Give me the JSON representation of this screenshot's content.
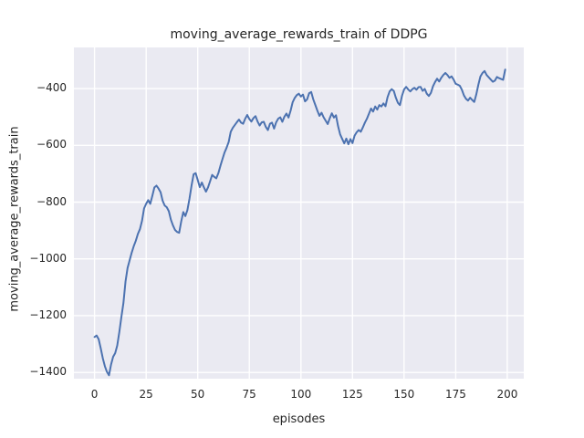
{
  "figure": {
    "title": "moving_average_rewards_train of DDPG",
    "xlabel": "episodes",
    "ylabel": "moving_average_rewards_train"
  },
  "colors": {
    "figure_bg": "#ffffff",
    "plot_bg": "#eaeaf2",
    "grid": "#ffffff",
    "line": "#4c72b0",
    "text": "#262626"
  },
  "chart_data": {
    "type": "line",
    "title": "moving_average_rewards_train of DDPG",
    "xlabel": "episodes",
    "ylabel": "moving_average_rewards_train",
    "style": "seaborn-darkgrid",
    "grid": true,
    "legend_position": "none",
    "x_ticks": [
      0,
      25,
      50,
      75,
      100,
      125,
      150,
      175,
      200
    ],
    "y_ticks": [
      -400,
      -600,
      -800,
      -1000,
      -1200,
      -1400
    ],
    "xlim": [
      -10,
      208
    ],
    "ylim": [
      -1422,
      -255
    ],
    "series": [
      {
        "name": "moving_average_rewards_train",
        "color": "#4c72b0",
        "points": [
          [
            0,
            -1275
          ],
          [
            1,
            -1270
          ],
          [
            2,
            -1283
          ],
          [
            3,
            -1315
          ],
          [
            4,
            -1350
          ],
          [
            5,
            -1378
          ],
          [
            6,
            -1398
          ],
          [
            7,
            -1410
          ],
          [
            8,
            -1372
          ],
          [
            9,
            -1345
          ],
          [
            10,
            -1332
          ],
          [
            11,
            -1305
          ],
          [
            12,
            -1258
          ],
          [
            13,
            -1205
          ],
          [
            14,
            -1155
          ],
          [
            15,
            -1080
          ],
          [
            16,
            -1032
          ],
          [
            17,
            -1005
          ],
          [
            18,
            -978
          ],
          [
            19,
            -955
          ],
          [
            20,
            -936
          ],
          [
            21,
            -912
          ],
          [
            22,
            -895
          ],
          [
            23,
            -866
          ],
          [
            24,
            -822
          ],
          [
            25,
            -806
          ],
          [
            26,
            -793
          ],
          [
            27,
            -806
          ],
          [
            28,
            -778
          ],
          [
            29,
            -748
          ],
          [
            30,
            -742
          ],
          [
            31,
            -752
          ],
          [
            32,
            -765
          ],
          [
            33,
            -795
          ],
          [
            34,
            -812
          ],
          [
            35,
            -818
          ],
          [
            36,
            -832
          ],
          [
            37,
            -862
          ],
          [
            38,
            -882
          ],
          [
            39,
            -898
          ],
          [
            40,
            -905
          ],
          [
            41,
            -908
          ],
          [
            42,
            -868
          ],
          [
            43,
            -835
          ],
          [
            44,
            -849
          ],
          [
            45,
            -828
          ],
          [
            46,
            -788
          ],
          [
            47,
            -742
          ],
          [
            48,
            -702
          ],
          [
            49,
            -698
          ],
          [
            50,
            -722
          ],
          [
            51,
            -747
          ],
          [
            52,
            -731
          ],
          [
            53,
            -748
          ],
          [
            54,
            -763
          ],
          [
            55,
            -748
          ],
          [
            56,
            -726
          ],
          [
            57,
            -704
          ],
          [
            58,
            -711
          ],
          [
            59,
            -716
          ],
          [
            60,
            -698
          ],
          [
            61,
            -672
          ],
          [
            62,
            -648
          ],
          [
            63,
            -625
          ],
          [
            64,
            -608
          ],
          [
            65,
            -588
          ],
          [
            66,
            -552
          ],
          [
            67,
            -538
          ],
          [
            68,
            -528
          ],
          [
            69,
            -518
          ],
          [
            70,
            -509
          ],
          [
            71,
            -520
          ],
          [
            72,
            -524
          ],
          [
            73,
            -506
          ],
          [
            74,
            -493
          ],
          [
            75,
            -507
          ],
          [
            76,
            -516
          ],
          [
            77,
            -504
          ],
          [
            78,
            -497
          ],
          [
            79,
            -516
          ],
          [
            80,
            -530
          ],
          [
            81,
            -519
          ],
          [
            82,
            -517
          ],
          [
            83,
            -535
          ],
          [
            84,
            -546
          ],
          [
            85,
            -524
          ],
          [
            86,
            -520
          ],
          [
            87,
            -541
          ],
          [
            88,
            -519
          ],
          [
            89,
            -506
          ],
          [
            90,
            -501
          ],
          [
            91,
            -517
          ],
          [
            92,
            -499
          ],
          [
            93,
            -488
          ],
          [
            94,
            -502
          ],
          [
            95,
            -478
          ],
          [
            96,
            -448
          ],
          [
            97,
            -433
          ],
          [
            98,
            -423
          ],
          [
            99,
            -418
          ],
          [
            100,
            -428
          ],
          [
            101,
            -421
          ],
          [
            102,
            -445
          ],
          [
            103,
            -438
          ],
          [
            104,
            -416
          ],
          [
            105,
            -412
          ],
          [
            106,
            -438
          ],
          [
            107,
            -458
          ],
          [
            108,
            -478
          ],
          [
            109,
            -496
          ],
          [
            110,
            -485
          ],
          [
            111,
            -501
          ],
          [
            112,
            -513
          ],
          [
            113,
            -525
          ],
          [
            114,
            -504
          ],
          [
            115,
            -487
          ],
          [
            116,
            -502
          ],
          [
            117,
            -494
          ],
          [
            118,
            -532
          ],
          [
            119,
            -561
          ],
          [
            120,
            -577
          ],
          [
            121,
            -593
          ],
          [
            122,
            -576
          ],
          [
            123,
            -596
          ],
          [
            124,
            -578
          ],
          [
            125,
            -592
          ],
          [
            126,
            -566
          ],
          [
            127,
            -554
          ],
          [
            128,
            -546
          ],
          [
            129,
            -552
          ],
          [
            130,
            -537
          ],
          [
            131,
            -520
          ],
          [
            132,
            -506
          ],
          [
            133,
            -488
          ],
          [
            134,
            -470
          ],
          [
            135,
            -481
          ],
          [
            136,
            -463
          ],
          [
            137,
            -474
          ],
          [
            138,
            -458
          ],
          [
            139,
            -463
          ],
          [
            140,
            -452
          ],
          [
            141,
            -462
          ],
          [
            142,
            -430
          ],
          [
            143,
            -410
          ],
          [
            144,
            -402
          ],
          [
            145,
            -408
          ],
          [
            146,
            -432
          ],
          [
            147,
            -450
          ],
          [
            148,
            -458
          ],
          [
            149,
            -425
          ],
          [
            150,
            -403
          ],
          [
            151,
            -394
          ],
          [
            152,
            -403
          ],
          [
            153,
            -410
          ],
          [
            154,
            -402
          ],
          [
            155,
            -397
          ],
          [
            156,
            -404
          ],
          [
            157,
            -395
          ],
          [
            158,
            -394
          ],
          [
            159,
            -408
          ],
          [
            160,
            -401
          ],
          [
            161,
            -418
          ],
          [
            162,
            -426
          ],
          [
            163,
            -415
          ],
          [
            164,
            -392
          ],
          [
            165,
            -377
          ],
          [
            166,
            -365
          ],
          [
            167,
            -375
          ],
          [
            168,
            -362
          ],
          [
            169,
            -352
          ],
          [
            170,
            -345
          ],
          [
            171,
            -352
          ],
          [
            172,
            -362
          ],
          [
            173,
            -357
          ],
          [
            174,
            -368
          ],
          [
            175,
            -383
          ],
          [
            176,
            -386
          ],
          [
            177,
            -390
          ],
          [
            178,
            -404
          ],
          [
            179,
            -424
          ],
          [
            180,
            -436
          ],
          [
            181,
            -442
          ],
          [
            182,
            -432
          ],
          [
            183,
            -440
          ],
          [
            184,
            -447
          ],
          [
            185,
            -420
          ],
          [
            186,
            -386
          ],
          [
            187,
            -357
          ],
          [
            188,
            -345
          ],
          [
            189,
            -338
          ],
          [
            190,
            -352
          ],
          [
            191,
            -360
          ],
          [
            192,
            -368
          ],
          [
            193,
            -376
          ],
          [
            194,
            -372
          ],
          [
            195,
            -359
          ],
          [
            196,
            -363
          ],
          [
            197,
            -366
          ],
          [
            198,
            -369
          ],
          [
            199,
            -333
          ]
        ]
      }
    ]
  }
}
